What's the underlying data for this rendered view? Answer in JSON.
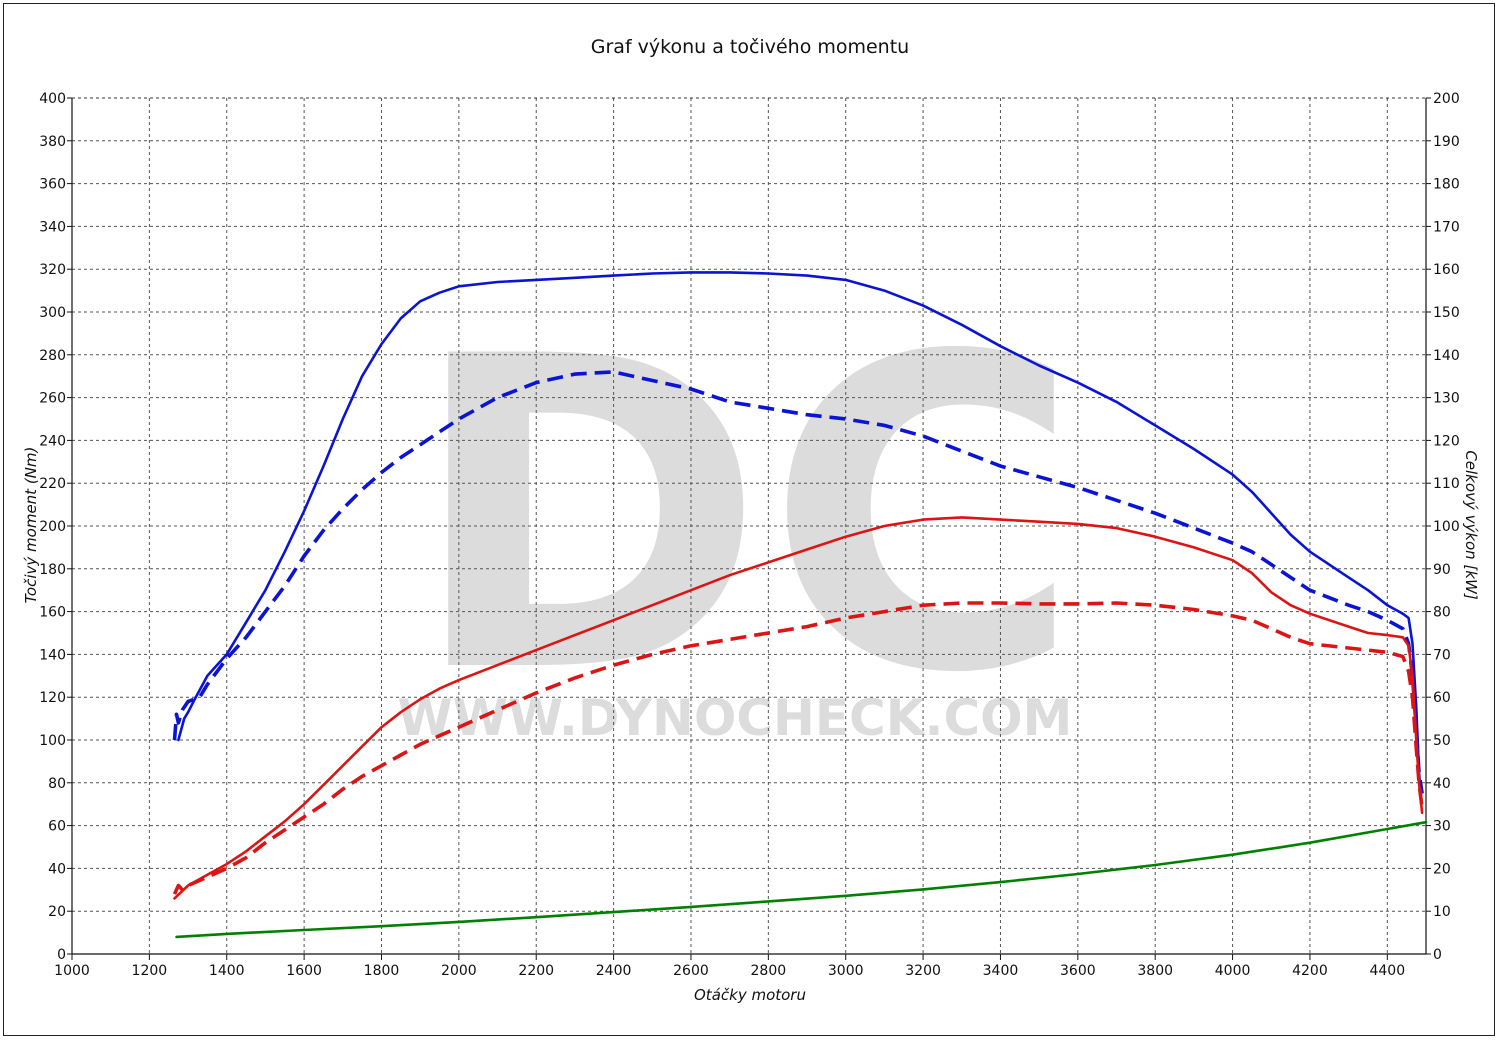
{
  "chart_data": {
    "type": "line",
    "title": "Graf výkonu a točivého momentu",
    "xlabel": "Otáčky motoru",
    "ylabel_left": "Točivý moment (Nm)",
    "ylabel_right": "Celkový výkon [kW]",
    "xlim": [
      1000,
      4500
    ],
    "ylim_left": [
      0,
      400
    ],
    "ylim_right": [
      0,
      200
    ],
    "x_ticks": [
      1000,
      1200,
      1400,
      1600,
      1800,
      2000,
      2200,
      2400,
      2600,
      2800,
      3000,
      3200,
      3400,
      3600,
      3800,
      4000,
      4200,
      4400
    ],
    "y_left_ticks": [
      0,
      20,
      40,
      60,
      80,
      100,
      120,
      140,
      160,
      180,
      200,
      220,
      240,
      260,
      280,
      300,
      320,
      340,
      360,
      380,
      400
    ],
    "y_right_ticks": [
      0,
      10,
      20,
      30,
      40,
      50,
      60,
      70,
      80,
      90,
      100,
      110,
      120,
      130,
      140,
      150,
      160,
      170,
      180,
      190,
      200
    ],
    "grid": true,
    "watermark": {
      "logo": "DC",
      "text": "WWW.DYNOCHECK.COM"
    },
    "series": [
      {
        "key": "torque_tuned",
        "axis": "left",
        "color": "#0a14d2",
        "style": "solid",
        "points": [
          [
            1275,
            100
          ],
          [
            1290,
            110
          ],
          [
            1300,
            113
          ],
          [
            1320,
            120
          ],
          [
            1350,
            130
          ],
          [
            1400,
            140
          ],
          [
            1450,
            155
          ],
          [
            1500,
            170
          ],
          [
            1550,
            188
          ],
          [
            1600,
            207
          ],
          [
            1650,
            228
          ],
          [
            1700,
            250
          ],
          [
            1750,
            270
          ],
          [
            1800,
            285
          ],
          [
            1850,
            297
          ],
          [
            1900,
            305
          ],
          [
            1950,
            309
          ],
          [
            2000,
            312
          ],
          [
            2100,
            314
          ],
          [
            2200,
            315
          ],
          [
            2300,
            316
          ],
          [
            2400,
            317
          ],
          [
            2500,
            318
          ],
          [
            2600,
            318.5
          ],
          [
            2700,
            318.5
          ],
          [
            2800,
            318
          ],
          [
            2900,
            317
          ],
          [
            3000,
            315
          ],
          [
            3100,
            310
          ],
          [
            3200,
            303
          ],
          [
            3300,
            294
          ],
          [
            3400,
            284
          ],
          [
            3500,
            275
          ],
          [
            3600,
            267
          ],
          [
            3700,
            258
          ],
          [
            3800,
            247
          ],
          [
            3900,
            236
          ],
          [
            4000,
            224
          ],
          [
            4050,
            216
          ],
          [
            4100,
            206
          ],
          [
            4150,
            196
          ],
          [
            4200,
            188
          ],
          [
            4300,
            176
          ],
          [
            4350,
            170
          ],
          [
            4400,
            163
          ],
          [
            4440,
            159
          ],
          [
            4455,
            157
          ],
          [
            4465,
            145
          ],
          [
            4475,
            115
          ],
          [
            4482,
            85
          ],
          [
            4488,
            72
          ]
        ]
      },
      {
        "key": "torque_stock",
        "axis": "left",
        "color": "#0a14d2",
        "style": "dashed",
        "points": [
          [
            1265,
            100
          ],
          [
            1270,
            112
          ],
          [
            1275,
            108
          ],
          [
            1285,
            114
          ],
          [
            1300,
            118
          ],
          [
            1330,
            120
          ],
          [
            1350,
            126
          ],
          [
            1400,
            138
          ],
          [
            1450,
            148
          ],
          [
            1500,
            160
          ],
          [
            1550,
            172
          ],
          [
            1600,
            186
          ],
          [
            1650,
            198
          ],
          [
            1700,
            208
          ],
          [
            1750,
            217
          ],
          [
            1800,
            225
          ],
          [
            1850,
            232
          ],
          [
            1900,
            238
          ],
          [
            1950,
            244
          ],
          [
            2000,
            250
          ],
          [
            2050,
            255
          ],
          [
            2100,
            260
          ],
          [
            2200,
            267
          ],
          [
            2300,
            271
          ],
          [
            2400,
            272
          ],
          [
            2500,
            268
          ],
          [
            2600,
            264
          ],
          [
            2700,
            258
          ],
          [
            2800,
            255
          ],
          [
            2900,
            252
          ],
          [
            3000,
            250
          ],
          [
            3100,
            247
          ],
          [
            3200,
            242
          ],
          [
            3300,
            235
          ],
          [
            3400,
            228
          ],
          [
            3500,
            223
          ],
          [
            3600,
            218
          ],
          [
            3700,
            212
          ],
          [
            3800,
            206
          ],
          [
            3900,
            199
          ],
          [
            4000,
            192
          ],
          [
            4050,
            188
          ],
          [
            4100,
            182
          ],
          [
            4150,
            176
          ],
          [
            4200,
            170
          ],
          [
            4300,
            163
          ],
          [
            4350,
            160
          ],
          [
            4400,
            156
          ],
          [
            4440,
            152
          ],
          [
            4455,
            145
          ],
          [
            4465,
            130
          ],
          [
            4475,
            105
          ],
          [
            4482,
            85
          ],
          [
            4490,
            75
          ]
        ]
      },
      {
        "key": "power_tuned",
        "axis": "right",
        "color": "#dc1414",
        "style": "solid",
        "points": [
          [
            1265,
            13
          ],
          [
            1300,
            16
          ],
          [
            1350,
            18.5
          ],
          [
            1400,
            21
          ],
          [
            1450,
            24
          ],
          [
            1500,
            27.5
          ],
          [
            1550,
            31
          ],
          [
            1600,
            35
          ],
          [
            1650,
            39.5
          ],
          [
            1700,
            44
          ],
          [
            1750,
            48.5
          ],
          [
            1800,
            53
          ],
          [
            1850,
            56.5
          ],
          [
            1900,
            59.5
          ],
          [
            1950,
            62
          ],
          [
            2000,
            64
          ],
          [
            2100,
            67.5
          ],
          [
            2200,
            71
          ],
          [
            2300,
            74.5
          ],
          [
            2400,
            78
          ],
          [
            2500,
            81.5
          ],
          [
            2600,
            85
          ],
          [
            2700,
            88.5
          ],
          [
            2800,
            91.5
          ],
          [
            2900,
            94.5
          ],
          [
            3000,
            97.5
          ],
          [
            3100,
            100
          ],
          [
            3200,
            101.5
          ],
          [
            3300,
            102
          ],
          [
            3400,
            101.5
          ],
          [
            3500,
            101
          ],
          [
            3600,
            100.5
          ],
          [
            3700,
            99.5
          ],
          [
            3800,
            97.5
          ],
          [
            3900,
            95
          ],
          [
            4000,
            92
          ],
          [
            4050,
            89
          ],
          [
            4100,
            84.5
          ],
          [
            4150,
            81.5
          ],
          [
            4200,
            79.5
          ],
          [
            4300,
            76.5
          ],
          [
            4350,
            75
          ],
          [
            4400,
            74.5
          ],
          [
            4440,
            74
          ],
          [
            4455,
            72
          ],
          [
            4465,
            65
          ],
          [
            4475,
            50
          ],
          [
            4482,
            40
          ],
          [
            4490,
            33
          ]
        ]
      },
      {
        "key": "power_stock",
        "axis": "right",
        "color": "#dc1414",
        "style": "dashed",
        "points": [
          [
            1265,
            14
          ],
          [
            1275,
            16
          ],
          [
            1285,
            15
          ],
          [
            1300,
            16
          ],
          [
            1350,
            18
          ],
          [
            1400,
            20
          ],
          [
            1450,
            22.5
          ],
          [
            1500,
            26
          ],
          [
            1550,
            29
          ],
          [
            1600,
            32
          ],
          [
            1650,
            35
          ],
          [
            1700,
            38.5
          ],
          [
            1750,
            41.5
          ],
          [
            1800,
            44
          ],
          [
            1850,
            46.5
          ],
          [
            1900,
            49
          ],
          [
            1950,
            51
          ],
          [
            2000,
            53
          ],
          [
            2100,
            57
          ],
          [
            2200,
            61
          ],
          [
            2300,
            64.5
          ],
          [
            2400,
            67.5
          ],
          [
            2500,
            70
          ],
          [
            2600,
            72
          ],
          [
            2700,
            73.5
          ],
          [
            2800,
            75
          ],
          [
            2900,
            76.5
          ],
          [
            3000,
            78.5
          ],
          [
            3100,
            80
          ],
          [
            3200,
            81.5
          ],
          [
            3300,
            82
          ],
          [
            3400,
            82
          ],
          [
            3500,
            81.8
          ],
          [
            3600,
            81.8
          ],
          [
            3700,
            82
          ],
          [
            3800,
            81.5
          ],
          [
            3900,
            80.5
          ],
          [
            4000,
            79
          ],
          [
            4050,
            78
          ],
          [
            4100,
            76
          ],
          [
            4150,
            74
          ],
          [
            4200,
            72.5
          ],
          [
            4300,
            71.5
          ],
          [
            4350,
            71
          ],
          [
            4400,
            70.5
          ],
          [
            4440,
            69.5
          ],
          [
            4455,
            66
          ],
          [
            4465,
            60
          ],
          [
            4475,
            48
          ],
          [
            4482,
            40
          ],
          [
            4490,
            34
          ]
        ]
      },
      {
        "key": "loss",
        "axis": "right",
        "color": "#008000",
        "style": "solid",
        "points": [
          [
            1270,
            4
          ],
          [
            1400,
            4.7
          ],
          [
            1600,
            5.6
          ],
          [
            1800,
            6.5
          ],
          [
            2000,
            7.5
          ],
          [
            2200,
            8.6
          ],
          [
            2400,
            9.8
          ],
          [
            2600,
            11
          ],
          [
            2800,
            12.3
          ],
          [
            3000,
            13.6
          ],
          [
            3200,
            15.1
          ],
          [
            3400,
            16.8
          ],
          [
            3600,
            18.7
          ],
          [
            3800,
            20.8
          ],
          [
            4000,
            23.2
          ],
          [
            4200,
            26
          ],
          [
            4400,
            29.2
          ],
          [
            4500,
            30.8
          ]
        ]
      }
    ]
  }
}
